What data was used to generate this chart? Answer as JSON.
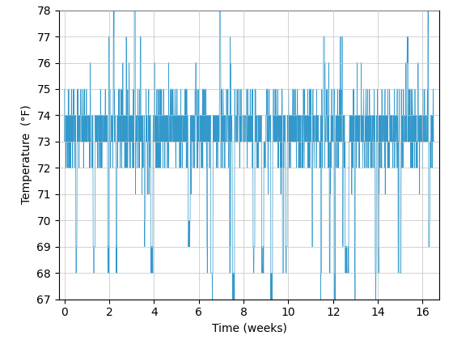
{
  "title": "",
  "xlabel": "Time (weeks)",
  "ylabel": "Temperature  (°F)",
  "xlim": [
    -0.25,
    16.75
  ],
  "ylim": [
    67,
    78
  ],
  "xticks": [
    0,
    2,
    4,
    6,
    8,
    10,
    12,
    14,
    16
  ],
  "yticks": [
    67,
    68,
    69,
    70,
    71,
    72,
    73,
    74,
    75,
    76,
    77,
    78
  ],
  "line_color": "#3399cc",
  "line_width": 0.5,
  "n_points": 2000,
  "x_max_weeks": 16.5,
  "base_temp": 73.5,
  "seed": 7,
  "grid": true,
  "figsize": [
    5.6,
    4.2
  ],
  "dpi": 100
}
